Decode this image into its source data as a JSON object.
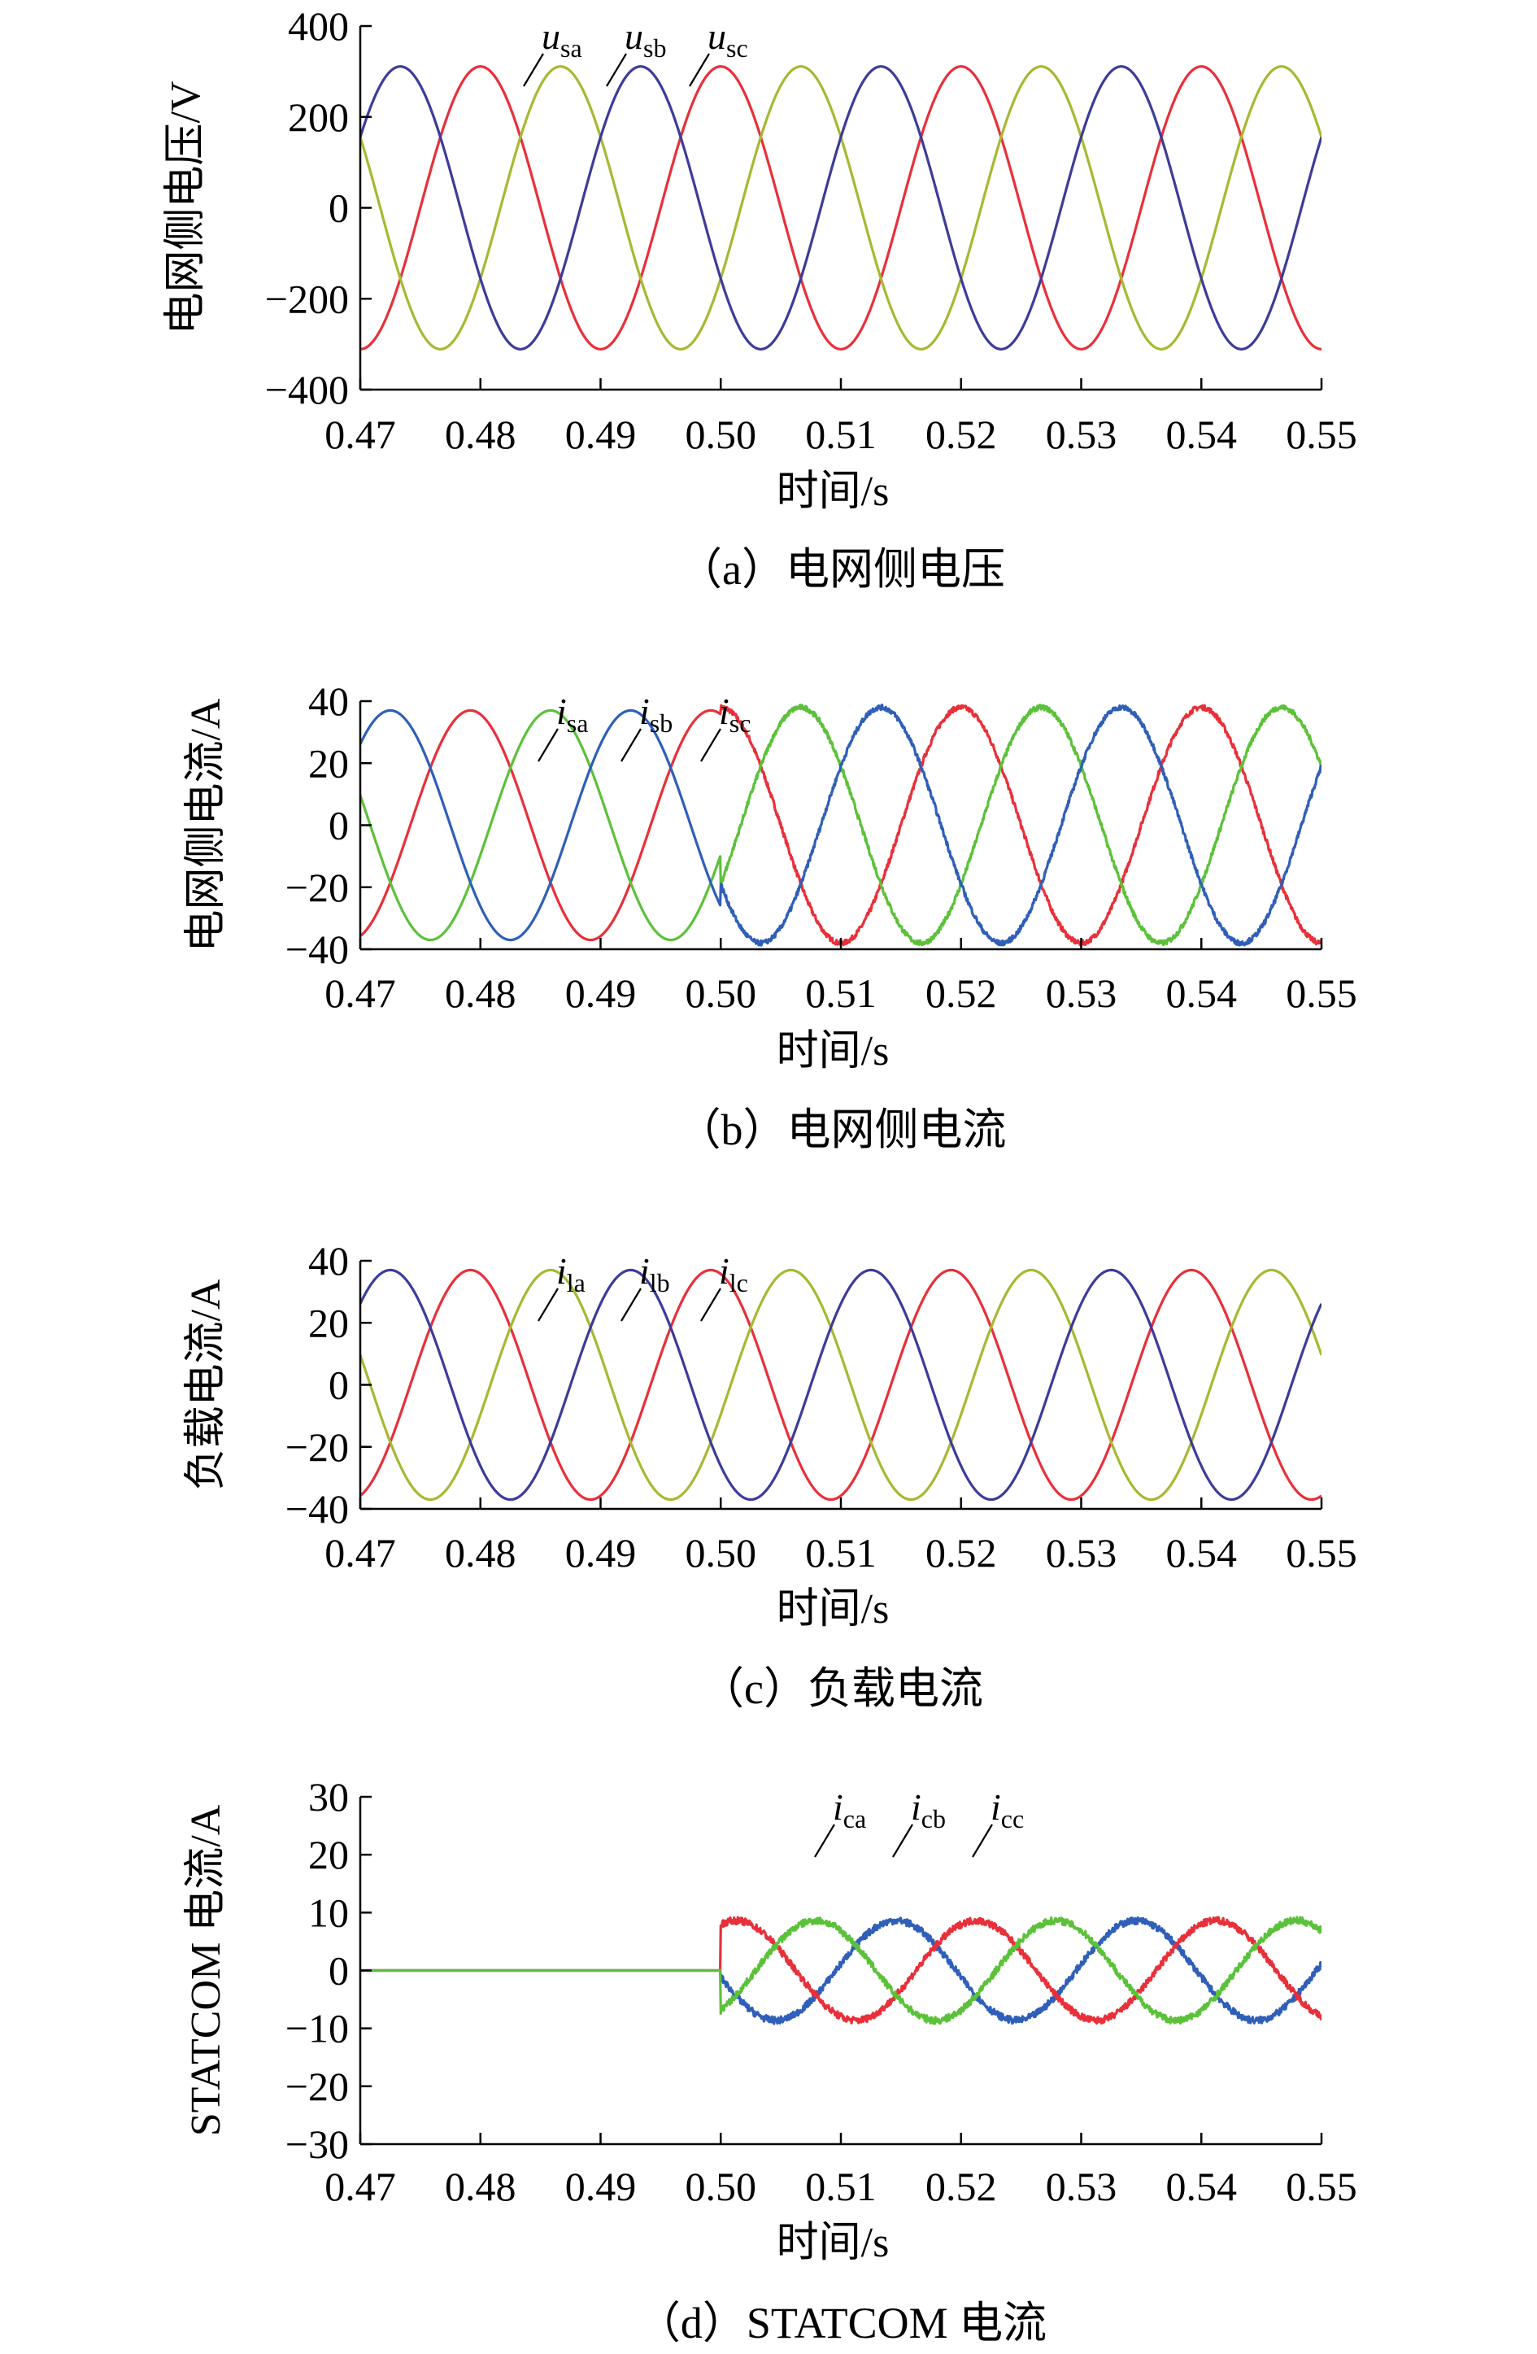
{
  "colors": {
    "axis": "#000000",
    "phase_a": "#e8303a",
    "phase_b": "#a8b832",
    "phase_c": "#3c3c9a",
    "sc_a": "#2f5fb8",
    "sc_b": "#e8303a",
    "sc_c": "#5cc13a"
  },
  "chart_data": [
    {
      "id": "a",
      "type": "line",
      "caption": "（a）电网侧电压",
      "xlabel": "时间/s",
      "ylabel": "电网侧电压/V",
      "xlim": [
        0.47,
        0.55
      ],
      "ylim": [
        -400,
        400
      ],
      "xticks": [
        "0.47",
        "0.48",
        "0.49",
        "0.50",
        "0.51",
        "0.52",
        "0.53",
        "0.54",
        "0.55"
      ],
      "yticks": [
        "400",
        "200",
        "0",
        "−200",
        "−400"
      ],
      "grid": false,
      "frequency_hz": 50,
      "series": [
        {
          "label_base": "u",
          "label_sub": "sa",
          "amplitude": 311,
          "phase_deg": 90,
          "color": "#e8303a"
        },
        {
          "label_base": "u",
          "label_sub": "sb",
          "amplitude": 311,
          "phase_deg": -30,
          "color": "#a8b832"
        },
        {
          "label_base": "u",
          "label_sub": "sc",
          "amplitude": 311,
          "phase_deg": -150,
          "color": "#3c3c9a"
        }
      ]
    },
    {
      "id": "b",
      "type": "line",
      "caption": "（b）电网侧电流",
      "xlabel": "时间/s",
      "ylabel": "电网侧电流/A",
      "xlim": [
        0.47,
        0.55
      ],
      "ylim": [
        -40,
        40
      ],
      "xticks": [
        "0.47",
        "0.48",
        "0.49",
        "0.50",
        "0.51",
        "0.52",
        "0.53",
        "0.54",
        "0.55"
      ],
      "yticks": [
        "40",
        "20",
        "0",
        "−20",
        "−40"
      ],
      "grid": false,
      "frequency_hz": 50,
      "switch_time": 0.5,
      "series": [
        {
          "label_base": "i",
          "label_sub": "sa",
          "amplitude": 38,
          "phase_deg": 90,
          "color": "#e8303a"
        },
        {
          "label_base": "i",
          "label_sub": "sb",
          "amplitude": 38,
          "phase_deg": -30,
          "color": "#5cc13a"
        },
        {
          "label_base": "i",
          "label_sub": "sc",
          "amplitude": 38,
          "phase_deg": -150,
          "color": "#2f5fb8"
        }
      ]
    },
    {
      "id": "c",
      "type": "line",
      "caption": "（c）负载电流",
      "xlabel": "时间/s",
      "ylabel": "负载电流/A",
      "xlim": [
        0.47,
        0.55
      ],
      "ylim": [
        -40,
        40
      ],
      "xticks": [
        "0.47",
        "0.48",
        "0.49",
        "0.50",
        "0.51",
        "0.52",
        "0.53",
        "0.54",
        "0.55"
      ],
      "yticks": [
        "40",
        "20",
        "0",
        "−20",
        "−40"
      ],
      "grid": false,
      "frequency_hz": 50,
      "series": [
        {
          "label_base": "i",
          "label_sub": "la",
          "amplitude": 37,
          "phase_deg": 90,
          "color": "#e8303a"
        },
        {
          "label_base": "i",
          "label_sub": "lb",
          "amplitude": 37,
          "phase_deg": -30,
          "color": "#a8b832"
        },
        {
          "label_base": "i",
          "label_sub": "lc",
          "amplitude": 37,
          "phase_deg": -150,
          "color": "#3c3c9a"
        }
      ]
    },
    {
      "id": "d",
      "type": "line",
      "caption": "（d）STATCOM 电流",
      "xlabel": "时间/s",
      "ylabel": "STATCOM 电流/A",
      "xlim": [
        0.47,
        0.55
      ],
      "ylim": [
        -30,
        30
      ],
      "xticks": [
        "0.47",
        "0.48",
        "0.49",
        "0.50",
        "0.51",
        "0.52",
        "0.53",
        "0.54",
        "0.55"
      ],
      "yticks": [
        "30",
        "20",
        "10",
        "0",
        "−10",
        "−20",
        "−30"
      ],
      "grid": false,
      "frequency_hz": 50,
      "switch_time": 0.5,
      "series": [
        {
          "label_base": "i",
          "label_sub": "ca",
          "phase_deg": 90,
          "color": "#2f5fb8"
        },
        {
          "label_base": "i",
          "label_sub": "cb",
          "phase_deg": -30,
          "color": "#e8303a"
        },
        {
          "label_base": "i",
          "label_sub": "cc",
          "phase_deg": -150,
          "color": "#5cc13a"
        }
      ]
    }
  ]
}
